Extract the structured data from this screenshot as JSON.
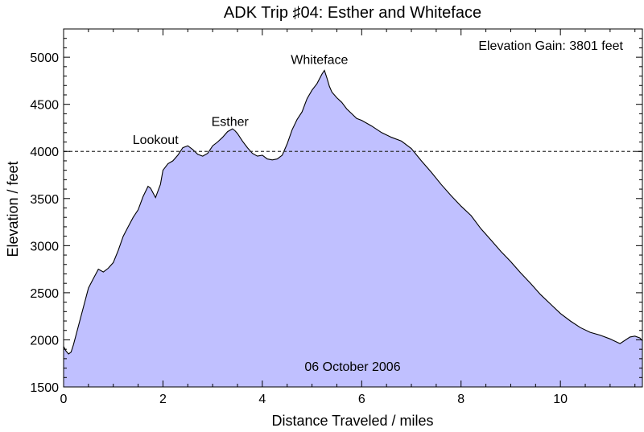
{
  "chart_data": {
    "type": "area",
    "title": "ADK Trip ♯04: Esther and Whiteface",
    "xlabel": "Distance Traveled / miles",
    "ylabel": "Elevation / feet",
    "xlim": [
      0,
      11.65
    ],
    "ylim": [
      1500,
      5300
    ],
    "xticks": [
      0,
      2,
      4,
      6,
      8,
      10
    ],
    "yticks": [
      1500,
      2000,
      2500,
      3000,
      3500,
      4000,
      4500,
      5000
    ],
    "fill_color": "#c0c0ff",
    "line_color": "#000000",
    "reference_line": {
      "y": 4000,
      "style": "dashed"
    },
    "annotations": {
      "gain": "Elevation Gain: 3801 feet",
      "date": "06 October 2006",
      "peaks": [
        {
          "label": "Lookout",
          "x": 1.85,
          "y": 4080
        },
        {
          "label": "Esther",
          "x": 3.35,
          "y": 4270
        },
        {
          "label": "Whiteface",
          "x": 5.15,
          "y": 4930
        }
      ]
    },
    "x": [
      0,
      0.05,
      0.1,
      0.15,
      0.2,
      0.25,
      0.3,
      0.4,
      0.5,
      0.6,
      0.7,
      0.8,
      0.9,
      1.0,
      1.1,
      1.2,
      1.3,
      1.4,
      1.5,
      1.6,
      1.7,
      1.75,
      1.8,
      1.85,
      1.95,
      2.0,
      2.1,
      2.2,
      2.3,
      2.4,
      2.5,
      2.6,
      2.7,
      2.8,
      2.9,
      3.0,
      3.1,
      3.2,
      3.3,
      3.4,
      3.45,
      3.5,
      3.6,
      3.7,
      3.8,
      3.9,
      4.0,
      4.1,
      4.2,
      4.3,
      4.4,
      4.5,
      4.6,
      4.7,
      4.8,
      4.9,
      5.0,
      5.1,
      5.2,
      5.25,
      5.3,
      5.35,
      5.4,
      5.5,
      5.6,
      5.7,
      5.8,
      5.9,
      6.0,
      6.2,
      6.4,
      6.6,
      6.8,
      7.0,
      7.2,
      7.4,
      7.6,
      7.8,
      8.0,
      8.2,
      8.4,
      8.6,
      8.8,
      9.0,
      9.2,
      9.4,
      9.6,
      9.8,
      10.0,
      10.2,
      10.4,
      10.6,
      10.8,
      11.0,
      11.2,
      11.4,
      11.5,
      11.6,
      11.65
    ],
    "y": [
      1930,
      1880,
      1850,
      1870,
      1950,
      2050,
      2150,
      2350,
      2550,
      2650,
      2750,
      2720,
      2760,
      2820,
      2950,
      3100,
      3200,
      3300,
      3380,
      3520,
      3630,
      3610,
      3560,
      3510,
      3650,
      3800,
      3870,
      3900,
      3960,
      4040,
      4060,
      4020,
      3970,
      3950,
      3980,
      4060,
      4100,
      4150,
      4210,
      4240,
      4220,
      4190,
      4110,
      4040,
      3980,
      3950,
      3960,
      3920,
      3910,
      3920,
      3960,
      4080,
      4230,
      4340,
      4420,
      4560,
      4650,
      4720,
      4820,
      4860,
      4780,
      4690,
      4630,
      4570,
      4520,
      4450,
      4400,
      4350,
      4330,
      4270,
      4200,
      4150,
      4110,
      4030,
      3900,
      3780,
      3650,
      3530,
      3420,
      3320,
      3180,
      3060,
      2940,
      2830,
      2710,
      2600,
      2480,
      2380,
      2280,
      2200,
      2130,
      2080,
      2050,
      2010,
      1960,
      2030,
      2040,
      2020,
      1990
    ]
  }
}
